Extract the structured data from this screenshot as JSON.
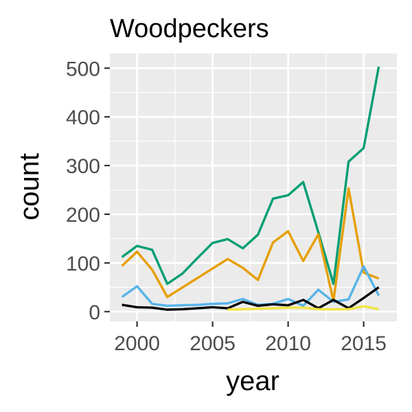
{
  "chart_data": {
    "type": "line",
    "title": "Woodpeckers",
    "xlabel": "year",
    "ylabel": "count",
    "xlim": [
      1998.2,
      2017.2
    ],
    "ylim": [
      -20,
      530
    ],
    "x_ticks": [
      2000,
      2005,
      2010,
      2015
    ],
    "y_ticks": [
      0,
      100,
      200,
      300,
      400,
      500
    ],
    "x_tick_labels": [
      "2000",
      "2005",
      "2010",
      "2015"
    ],
    "y_tick_labels": [
      "0",
      "100",
      "200",
      "300",
      "400",
      "500"
    ],
    "grid": true,
    "legend": "none",
    "panel_background": "#ebebeb",
    "series": [
      {
        "color": "#009E73",
        "x": [
          1999,
          2000,
          2001,
          2002,
          2003,
          2004,
          2005,
          2006,
          2007,
          2008,
          2009,
          2010,
          2011,
          2012,
          2013,
          2014,
          2015,
          2016
        ],
        "y": [
          112,
          135,
          127,
          57,
          78,
          110,
          141,
          149,
          130,
          158,
          232,
          239,
          266,
          163,
          57,
          308,
          336,
          503
        ]
      },
      {
        "color": "#E69F00",
        "x": [
          1999,
          2000,
          2001,
          2002,
          2006,
          2007,
          2008,
          2009,
          2010,
          2011,
          2012,
          2013,
          2014,
          2015,
          2016
        ],
        "y": [
          94,
          123,
          86,
          30,
          108,
          90,
          65,
          142,
          165,
          104,
          159,
          22,
          253,
          80,
          68
        ]
      },
      {
        "color": "#56B4E9",
        "x": [
          1999,
          2000,
          2001,
          2002,
          2003,
          2004,
          2005,
          2006,
          2007,
          2008,
          2009,
          2010,
          2011,
          2012,
          2013,
          2014,
          2015,
          2016
        ],
        "y": [
          30,
          52,
          16,
          12,
          13,
          14,
          16,
          17,
          26,
          14,
          16,
          26,
          12,
          45,
          20,
          25,
          93,
          33
        ]
      },
      {
        "color": "#000000",
        "x": [
          1999,
          2000,
          2001,
          2002,
          2003,
          2004,
          2005,
          2006,
          2007,
          2008,
          2009,
          2010,
          2011,
          2012,
          2013,
          2014,
          2015,
          2016
        ],
        "y": [
          14,
          9,
          8,
          4,
          5,
          7,
          9,
          7,
          20,
          12,
          15,
          13,
          24,
          7,
          24,
          7,
          28,
          50
        ]
      },
      {
        "color": "#F0E442",
        "x": [
          2006,
          2007,
          2008,
          2009,
          2010,
          2011,
          2012,
          2013,
          2014,
          2015,
          2016
        ],
        "y": [
          4,
          5,
          6,
          7,
          8,
          8,
          5,
          5,
          5,
          11,
          5
        ]
      }
    ]
  }
}
